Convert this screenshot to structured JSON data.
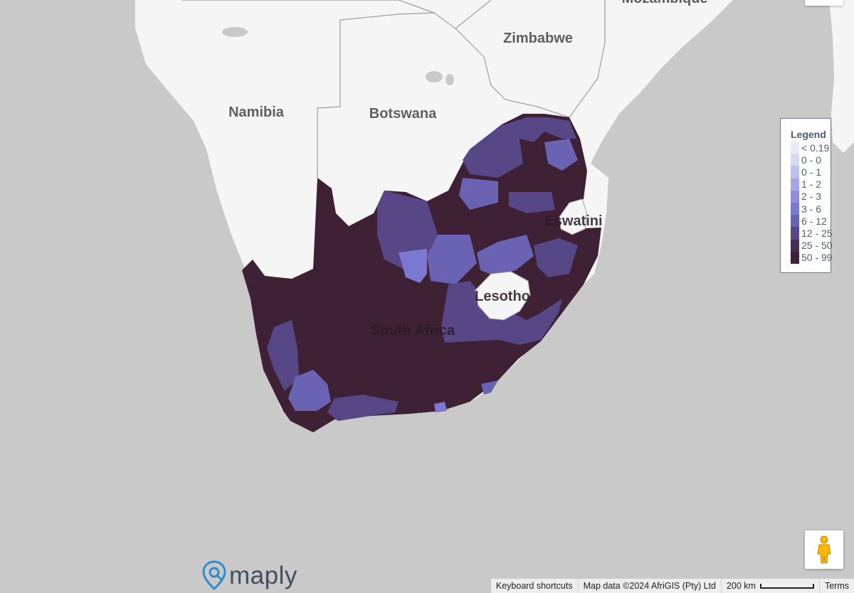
{
  "map": {
    "labels": {
      "namibia": "Namibia",
      "botswana": "Botswana",
      "zimbabwe": "Zimbabwe",
      "mozambique": "Mozambique",
      "south_africa": "South Africa",
      "lesotho": "Lesotho",
      "eswatini": "Eswatini"
    },
    "colors": {
      "ocean": "#c9c9c9",
      "land": "#f5f5f5",
      "border": "#9e9e9e"
    }
  },
  "legend": {
    "title": "Legend",
    "items": [
      {
        "label": "< 0.19",
        "color": "#e8edf2"
      },
      {
        "label": "0 - 0",
        "color": "#d7dbef"
      },
      {
        "label": "0 - 1",
        "color": "#bcc0ea"
      },
      {
        "label": "1 - 2",
        "color": "#a4a6e3"
      },
      {
        "label": "2 - 3",
        "color": "#8e8edb"
      },
      {
        "label": "3 - 6",
        "color": "#7a78d0"
      },
      {
        "label": "6 - 12",
        "color": "#6a62b3"
      },
      {
        "label": "12 - 25",
        "color": "#574787"
      },
      {
        "label": "25 - 50",
        "color": "#433059"
      },
      {
        "label": "50 - 99",
        "color": "#3f2136"
      }
    ]
  },
  "controls": {
    "pegman_icon": "pegman-icon",
    "brand": "maply"
  },
  "attribution": {
    "shortcuts": "Keyboard shortcuts",
    "map_data": "Map data ©2024 AfriGIS (Pty) Ltd",
    "scale": "200 km",
    "terms": "Terms"
  }
}
